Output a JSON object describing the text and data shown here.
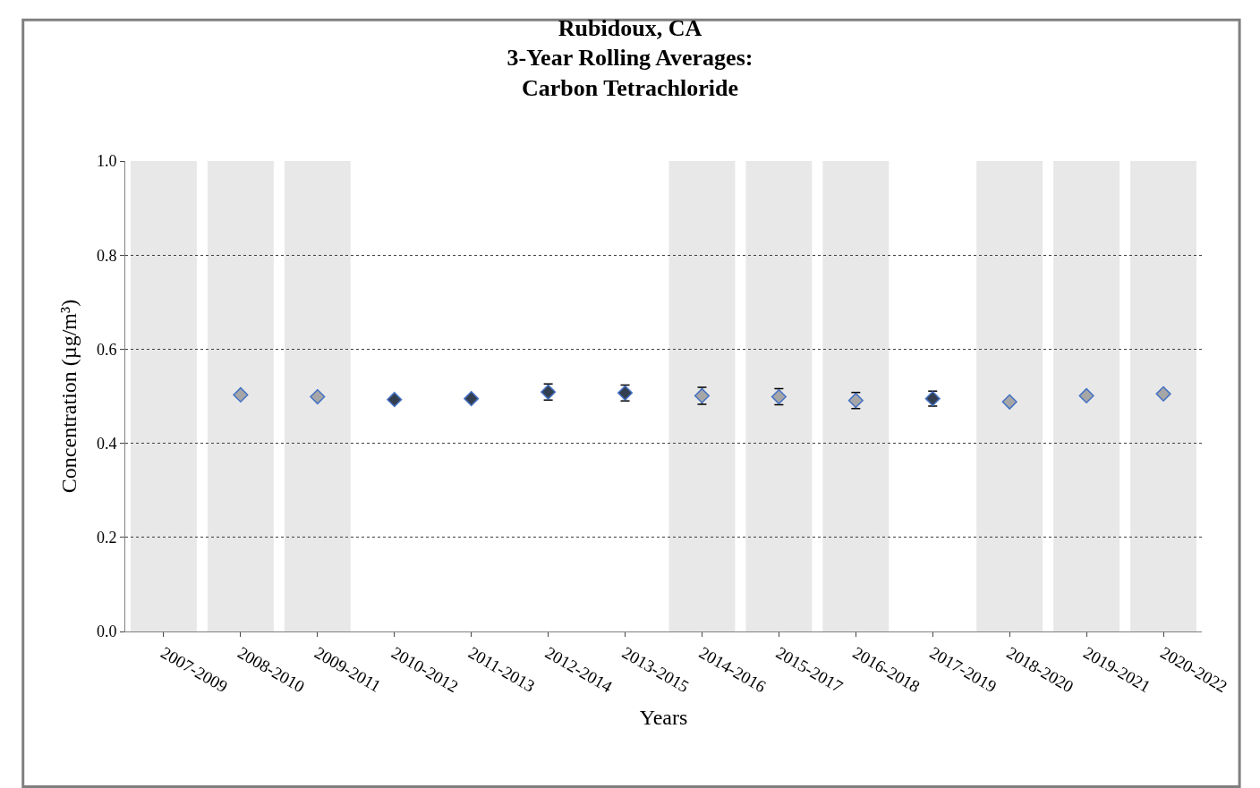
{
  "chart_data": {
    "type": "scatter",
    "title": "Rubidoux, CA\n3-Year Rolling Averages:\nCarbon Tetrachloride",
    "xlabel": "Years",
    "ylabel": "Concentration (µg/m³)",
    "categories": [
      "2007-2009",
      "2008-2010",
      "2009-2011",
      "2010-2012",
      "2011-2013",
      "2012-2014",
      "2013-2015",
      "2014-2016",
      "2015-2017",
      "2016-2018",
      "2017-2019",
      "2018-2020",
      "2019-2021",
      "2020-2022"
    ],
    "series": [
      {
        "color": "#333f50",
        "values": [
          null,
          null,
          null,
          0.493,
          0.495,
          0.509,
          0.507,
          null,
          null,
          null,
          0.495,
          null,
          null,
          null
        ],
        "errors": [
          null,
          null,
          null,
          null,
          null,
          0.017,
          0.017,
          null,
          null,
          null,
          0.016,
          null,
          null,
          null
        ]
      },
      {
        "color": "#a6a6a6",
        "values": [
          null,
          0.503,
          0.499,
          null,
          null,
          null,
          null,
          0.501,
          0.499,
          0.491,
          null,
          0.488,
          0.501,
          0.505
        ],
        "errors": [
          null,
          null,
          null,
          null,
          null,
          null,
          null,
          0.018,
          0.017,
          0.017,
          null,
          null,
          null,
          null
        ]
      }
    ],
    "bands": [
      {
        "axis": "x",
        "from": "2007-2009",
        "to": "2007-2009",
        "color": "#e8e8e8"
      },
      {
        "axis": "x",
        "from": "2008-2010",
        "to": "2008-2010",
        "color": "#e8e8e8"
      },
      {
        "axis": "x",
        "from": "2009-2011",
        "to": "2009-2011",
        "color": "#e8e8e8"
      },
      {
        "axis": "x",
        "from": "2014-2016",
        "to": "2014-2016",
        "color": "#e8e8e8"
      },
      {
        "axis": "x",
        "from": "2015-2017",
        "to": "2015-2017",
        "color": "#e8e8e8"
      },
      {
        "axis": "x",
        "from": "2016-2018",
        "to": "2016-2018",
        "color": "#e8e8e8"
      },
      {
        "axis": "x",
        "from": "2018-2020",
        "to": "2018-2020",
        "color": "#e8e8e8"
      },
      {
        "axis": "x",
        "from": "2019-2021",
        "to": "2019-2021",
        "color": "#e8e8e8"
      },
      {
        "axis": "x",
        "from": "2020-2022",
        "to": "2020-2022",
        "color": "#e8e8e8"
      }
    ],
    "ylim": [
      0,
      1.0
    ],
    "yticks": [
      {
        "value": 0,
        "label": "0.0"
      },
      0.2,
      0.4,
      0.6,
      0.8,
      {
        "value": 1.0,
        "label": "1.0"
      }
    ],
    "grid": "y",
    "marker": "diamond"
  }
}
